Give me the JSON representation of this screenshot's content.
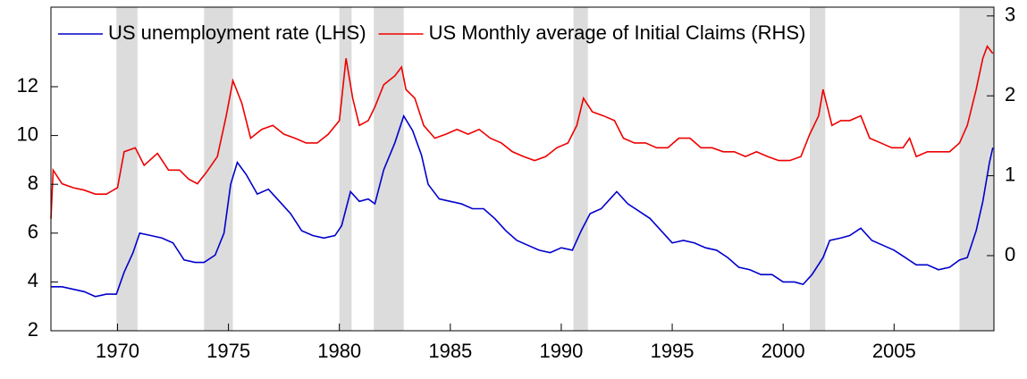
{
  "chart_data": {
    "type": "line",
    "xlim": [
      1967.0,
      2009.5
    ],
    "xticks": [
      1970,
      1975,
      1980,
      1985,
      1990,
      1995,
      2000,
      2005
    ],
    "ylim": [
      2,
      15.26
    ],
    "yticks": [
      2,
      4,
      6,
      8,
      10,
      12
    ],
    "y2lim": [
      -0.94,
      3.11
    ],
    "y2ticks": [
      0,
      1,
      2,
      3
    ],
    "legend": "top-left",
    "shade_color": "#dcdcdc",
    "recessions": [
      [
        1969.95,
        1970.9
      ],
      [
        1973.9,
        1975.2
      ],
      [
        1980.0,
        1980.55
      ],
      [
        1981.55,
        1982.9
      ],
      [
        1990.55,
        1991.2
      ],
      [
        2001.2,
        2001.9
      ],
      [
        2007.95,
        2009.5
      ]
    ],
    "series": [
      {
        "name": "US unemployment rate (LHS)",
        "color": "#0000cc",
        "x": [
          1967.0,
          1967.5,
          1968.0,
          1968.5,
          1969.0,
          1969.5,
          1969.95,
          1970.3,
          1970.7,
          1971.0,
          1971.5,
          1972.0,
          1972.5,
          1973.0,
          1973.5,
          1973.9,
          1974.4,
          1974.8,
          1975.1,
          1975.4,
          1975.8,
          1976.3,
          1976.8,
          1977.3,
          1977.8,
          1978.3,
          1978.8,
          1979.3,
          1979.8,
          1980.1,
          1980.5,
          1980.9,
          1981.3,
          1981.6,
          1982.0,
          1982.5,
          1982.9,
          1983.3,
          1983.7,
          1984.0,
          1984.5,
          1985.0,
          1985.5,
          1986.0,
          1986.5,
          1987.0,
          1987.5,
          1988.0,
          1988.5,
          1989.0,
          1989.5,
          1990.0,
          1990.5,
          1990.9,
          1991.3,
          1991.8,
          1992.2,
          1992.5,
          1993.0,
          1993.5,
          1994.0,
          1994.5,
          1995.0,
          1995.5,
          1996.0,
          1996.5,
          1997.0,
          1997.5,
          1998.0,
          1998.5,
          1999.0,
          1999.5,
          2000.0,
          2000.5,
          2000.9,
          2001.3,
          2001.8,
          2002.1,
          2002.6,
          2003.0,
          2003.5,
          2004.0,
          2004.5,
          2005.0,
          2005.5,
          2006.0,
          2006.5,
          2007.0,
          2007.5,
          2007.95,
          2008.3,
          2008.7,
          2009.0,
          2009.3,
          2009.45
        ],
        "values": [
          3.8,
          3.8,
          3.7,
          3.6,
          3.4,
          3.5,
          3.5,
          4.4,
          5.2,
          6.0,
          5.9,
          5.8,
          5.6,
          4.9,
          4.8,
          4.8,
          5.1,
          6.0,
          8.0,
          8.9,
          8.4,
          7.6,
          7.8,
          7.3,
          6.8,
          6.1,
          5.9,
          5.8,
          5.9,
          6.3,
          7.7,
          7.3,
          7.4,
          7.2,
          8.6,
          9.7,
          10.8,
          10.2,
          9.2,
          8.0,
          7.4,
          7.3,
          7.2,
          7.0,
          7.0,
          6.6,
          6.1,
          5.7,
          5.5,
          5.3,
          5.2,
          5.4,
          5.3,
          6.1,
          6.8,
          7.0,
          7.4,
          7.7,
          7.2,
          6.9,
          6.6,
          6.1,
          5.6,
          5.7,
          5.6,
          5.4,
          5.3,
          5.0,
          4.6,
          4.5,
          4.3,
          4.3,
          4.0,
          4.0,
          3.9,
          4.3,
          5.0,
          5.7,
          5.8,
          5.9,
          6.2,
          5.7,
          5.5,
          5.3,
          5.0,
          4.7,
          4.7,
          4.5,
          4.6,
          4.9,
          5.0,
          6.1,
          7.3,
          8.9,
          9.5
        ]
      },
      {
        "name": "US Monthly average of Initial Claims (RHS)",
        "color": "#ee0000",
        "axis": "y2",
        "x": [
          1967.0,
          1967.1,
          1967.5,
          1968.0,
          1968.5,
          1969.0,
          1969.5,
          1970.0,
          1970.3,
          1970.8,
          1971.2,
          1971.8,
          1972.3,
          1972.8,
          1973.2,
          1973.6,
          1974.0,
          1974.5,
          1974.9,
          1975.2,
          1975.6,
          1976.0,
          1976.5,
          1977.0,
          1977.5,
          1978.0,
          1978.5,
          1979.0,
          1979.5,
          1980.0,
          1980.3,
          1980.6,
          1980.9,
          1981.3,
          1981.6,
          1982.0,
          1982.5,
          1982.8,
          1983.0,
          1983.4,
          1983.8,
          1984.3,
          1984.8,
          1985.3,
          1985.8,
          1986.3,
          1986.8,
          1987.3,
          1987.8,
          1988.3,
          1988.8,
          1989.3,
          1989.8,
          1990.3,
          1990.7,
          1991.0,
          1991.4,
          1991.9,
          1992.4,
          1992.8,
          1993.3,
          1993.8,
          1994.3,
          1994.8,
          1995.3,
          1995.8,
          1996.3,
          1996.8,
          1997.3,
          1997.8,
          1998.3,
          1998.8,
          1999.3,
          1999.8,
          2000.3,
          2000.8,
          2001.2,
          2001.6,
          2001.8,
          2002.2,
          2002.6,
          2003.0,
          2003.5,
          2003.9,
          2004.4,
          2004.9,
          2005.4,
          2005.7,
          2006.0,
          2006.5,
          2007.0,
          2007.5,
          2007.95,
          2008.3,
          2008.7,
          2009.0,
          2009.2,
          2009.45
        ],
        "values": [
          0.46,
          1.07,
          0.9,
          0.85,
          0.82,
          0.77,
          0.77,
          0.85,
          1.3,
          1.35,
          1.13,
          1.28,
          1.07,
          1.07,
          0.96,
          0.9,
          1.04,
          1.24,
          1.75,
          2.19,
          1.91,
          1.47,
          1.58,
          1.63,
          1.52,
          1.47,
          1.41,
          1.41,
          1.52,
          1.69,
          2.47,
          1.97,
          1.63,
          1.69,
          1.86,
          2.14,
          2.25,
          2.36,
          2.08,
          1.97,
          1.63,
          1.47,
          1.52,
          1.58,
          1.52,
          1.58,
          1.47,
          1.41,
          1.3,
          1.24,
          1.19,
          1.24,
          1.35,
          1.41,
          1.63,
          1.97,
          1.8,
          1.75,
          1.69,
          1.47,
          1.41,
          1.41,
          1.35,
          1.35,
          1.47,
          1.47,
          1.35,
          1.35,
          1.3,
          1.3,
          1.24,
          1.3,
          1.24,
          1.19,
          1.19,
          1.24,
          1.52,
          1.75,
          2.08,
          1.63,
          1.69,
          1.69,
          1.75,
          1.47,
          1.41,
          1.35,
          1.35,
          1.47,
          1.24,
          1.3,
          1.3,
          1.3,
          1.41,
          1.63,
          2.08,
          2.47,
          2.62,
          2.53
        ]
      }
    ]
  }
}
